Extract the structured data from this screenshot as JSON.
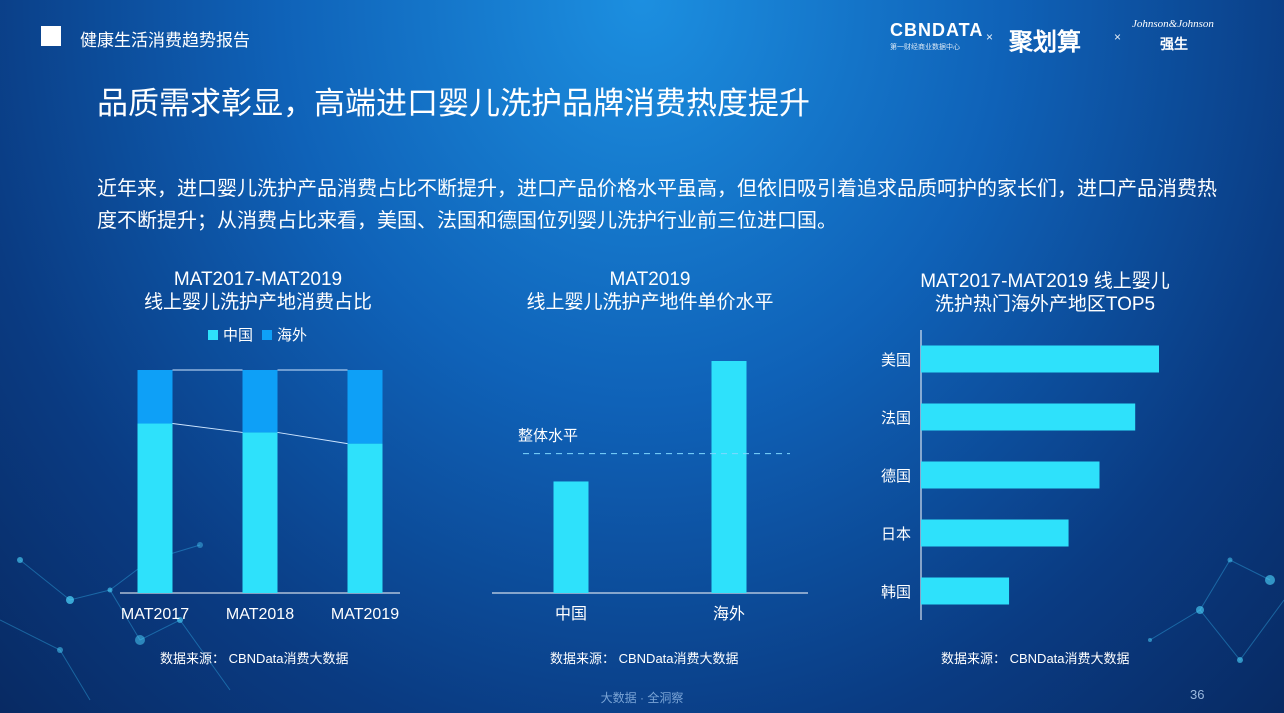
{
  "header": {
    "section_title": "健康生活消费趋势报告"
  },
  "brands": {
    "cbndata": "CBNDATA",
    "cbndata_sub": "第一财经商业数据中心",
    "times": "×",
    "juhuasuan": "聚划算",
    "jnj": "Johnson&Johnson",
    "jnj_cn": "强生"
  },
  "main_title": "品质需求彰显，高端进口婴儿洗护品牌消费热度提升",
  "intro": "近年来，进口婴儿洗护产品消费占比不断提升，进口产品价格水平虽高，但依旧吸引着追求品质呵护的家长们，进口产品消费热度不断提升；从消费占比来看，美国、法国和德国位列婴儿洗护行业前三位进口国。",
  "source_label": "数据来源：  CBNData消费大数据",
  "footer": {
    "tagline": "大数据 · 全洞察",
    "page": "36"
  },
  "colors": {
    "china": "#2ee1fb",
    "overseas": "#0ea0f7",
    "bar": "#2ee1fb"
  },
  "chart_data": [
    {
      "type": "bar",
      "stacked": true,
      "title_lines": [
        "MAT2017-MAT2019",
        "线上婴儿洗护产地消费占比"
      ],
      "categories": [
        "MAT2017",
        "MAT2018",
        "MAT2019"
      ],
      "series": [
        {
          "name": "中国",
          "values": [
            76,
            72,
            67
          ]
        },
        {
          "name": "海外",
          "values": [
            24,
            28,
            33
          ]
        }
      ],
      "ylim": [
        0,
        100
      ],
      "legend": "top"
    },
    {
      "type": "bar",
      "title_lines": [
        "MAT2019",
        "线上婴儿洗护产地件单价水平"
      ],
      "categories": [
        "中国",
        "海外"
      ],
      "values": [
        1.0,
        2.08
      ],
      "reference_line": {
        "label": "整体水平",
        "value": 1.25
      },
      "ylim": [
        0,
        2.08
      ]
    },
    {
      "type": "bar",
      "orientation": "horizontal",
      "title_lines": [
        "MAT2017-MAT2019 线上婴儿",
        "洗护热门海外产地区TOP5"
      ],
      "categories": [
        "美国",
        "法国",
        "德国",
        "日本",
        "韩国"
      ],
      "values": [
        100,
        90,
        75,
        62,
        37
      ],
      "xlim": [
        0,
        100
      ]
    }
  ]
}
